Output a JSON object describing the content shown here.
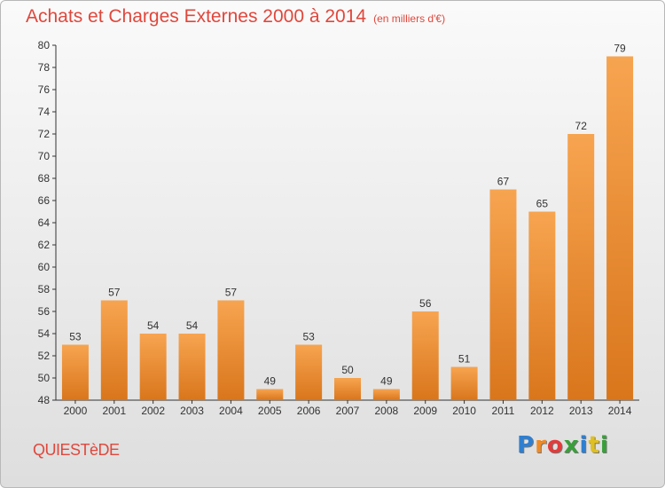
{
  "header": {
    "title": "Achats et Charges Externes 2000 à 2014",
    "subtitle": "(en milliers d'€)"
  },
  "footer": {
    "town": "QUIESTèDE",
    "logo_letters": [
      "P",
      "r",
      "o",
      "x",
      "i",
      "t",
      "i"
    ],
    "logo_colors": [
      "#2f7fd0",
      "#f08a24",
      "#e23b3b",
      "#3a9f3a",
      "#2f7fd0",
      "#e0c020",
      "#3a9f3a"
    ]
  },
  "chart_data": {
    "type": "bar",
    "title": "Achats et Charges Externes 2000 à 2014",
    "subtitle": "(en milliers d'€)",
    "xlabel": "",
    "ylabel": "",
    "categories": [
      "2000",
      "2001",
      "2002",
      "2003",
      "2004",
      "2005",
      "2006",
      "2007",
      "2008",
      "2009",
      "2010",
      "2011",
      "2012",
      "2013",
      "2014"
    ],
    "values": [
      53,
      57,
      54,
      54,
      57,
      49,
      53,
      50,
      49,
      56,
      51,
      67,
      65,
      72,
      79
    ],
    "ylim": [
      48,
      80
    ],
    "yticks": [
      48,
      50,
      52,
      54,
      56,
      58,
      60,
      62,
      64,
      66,
      68,
      70,
      72,
      74,
      76,
      78,
      80
    ],
    "grid": false,
    "colors": {
      "bar_light": "#f7a450",
      "bar_dark": "#d9761c",
      "axis": "#333333"
    }
  }
}
